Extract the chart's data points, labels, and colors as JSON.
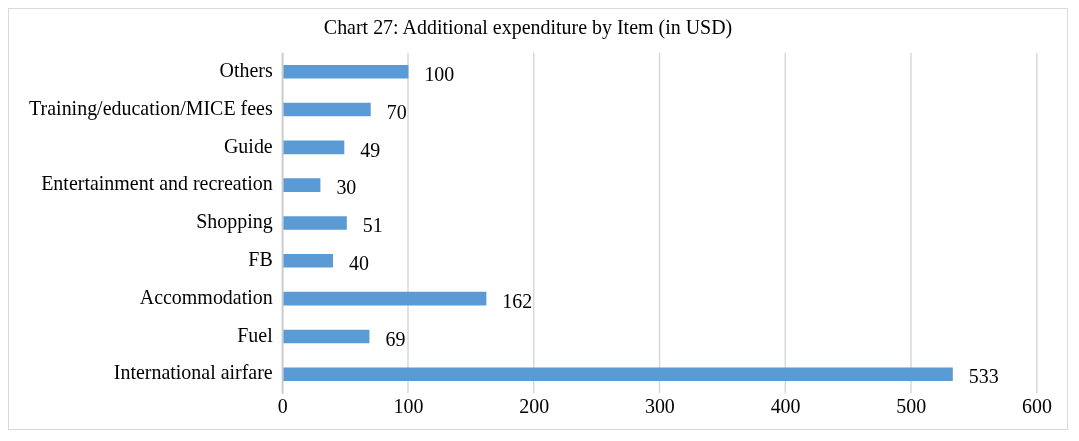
{
  "chart_data": {
    "type": "bar",
    "orientation": "horizontal",
    "title": "Chart 27: Additional expenditure by Item (in USD)",
    "categories": [
      "Others",
      "Training/education/MICE fees",
      "Guide",
      "Entertainment and recreation",
      "Shopping",
      "FB",
      "Accommodation",
      "Fuel",
      "International airfare"
    ],
    "values": [
      100,
      70,
      49,
      30,
      51,
      40,
      162,
      69,
      533
    ],
    "color": "#5b9bd5",
    "xlim": [
      0,
      600
    ],
    "xticks": [
      0,
      100,
      200,
      300,
      400,
      500,
      600
    ],
    "grid": "x",
    "data_labels": true,
    "legend": false
  }
}
